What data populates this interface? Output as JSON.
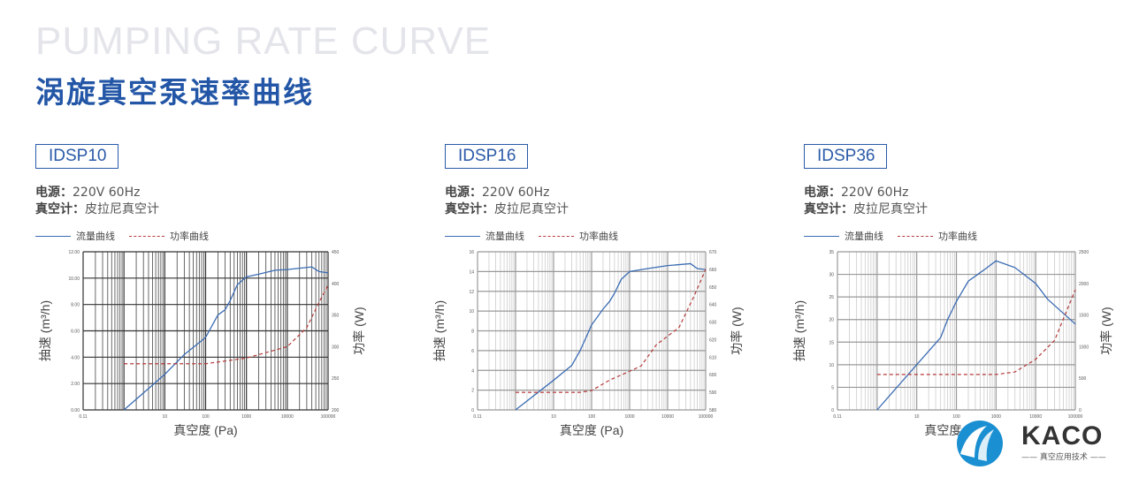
{
  "header": {
    "title_en": "PUMPING RATE CURVE",
    "title_cn": "涡旋真空泵速率曲线"
  },
  "brand": {
    "name": "KACO",
    "tagline": "—— 真空应用技术 ——"
  },
  "colors": {
    "accent": "#2356a6",
    "flow": "#3a6bb3",
    "power": "#b63a3a"
  },
  "chart_data": [
    {
      "type": "line",
      "model": "IDSP10",
      "spec_power_label": "电源：",
      "spec_power": "220V 60Hz",
      "spec_gauge_label": "真空计：",
      "spec_gauge": "皮拉尼真空计",
      "xlabel": "真空度 (Pa)",
      "ylabel": "抽速 (m³/h)",
      "y2label": "功率 (W)",
      "xscale": "log",
      "xlim": [
        0.1,
        100000
      ],
      "xticks": [
        "0.11",
        "10",
        "100",
        "1000",
        "10000",
        "100000"
      ],
      "ylim": [
        0,
        12
      ],
      "yticks": [
        "0.00",
        "2.00",
        "4.00",
        "6.00",
        "8.00",
        "10.00",
        "12.00"
      ],
      "y2lim": [
        200,
        450
      ],
      "y2ticks": [
        "200",
        "250",
        "300",
        "350",
        "400",
        "450"
      ],
      "grid": true,
      "legend": "top-left",
      "series": [
        {
          "name": "流量曲线",
          "axis": "left",
          "x": [
            1,
            10,
            30,
            100,
            200,
            300,
            400,
            600,
            1000,
            2000,
            5000,
            10000,
            20000,
            40000,
            60000,
            100000
          ],
          "y": [
            0,
            2.7,
            4.2,
            5.5,
            7.2,
            7.6,
            8.3,
            9.5,
            10.1,
            10.3,
            10.6,
            10.65,
            10.75,
            10.85,
            10.5,
            10.4
          ]
        },
        {
          "name": "功率曲线",
          "axis": "right",
          "x": [
            1,
            100,
            1000,
            10000,
            30000,
            60000,
            100000
          ],
          "y": [
            273,
            273,
            282,
            300,
            330,
            370,
            397
          ]
        }
      ]
    },
    {
      "type": "line",
      "model": "IDSP16",
      "spec_power_label": "电源：",
      "spec_power": "220V 60Hz",
      "spec_gauge_label": "真空计：",
      "spec_gauge": "皮拉尼真空计",
      "xlabel": "真空度 (Pa)",
      "ylabel": "抽速 (m³/h)",
      "y2label": "功率 (W)",
      "xscale": "log",
      "xlim": [
        0.1,
        100000
      ],
      "xticks": [
        "0.11",
        "10",
        "100",
        "1000",
        "10000",
        "100000"
      ],
      "ylim": [
        0,
        16
      ],
      "yticks": [
        "0",
        "2",
        "4",
        "6",
        "8",
        "10",
        "12",
        "14",
        "16"
      ],
      "y2lim": [
        580,
        670
      ],
      "y2ticks": [
        "580",
        "590",
        "600",
        "610",
        "620",
        "630",
        "640",
        "650",
        "660",
        "670"
      ],
      "grid": true,
      "legend": "top-left",
      "series": [
        {
          "name": "流量曲线",
          "axis": "left",
          "x": [
            1,
            10,
            30,
            50,
            100,
            200,
            300,
            400,
            600,
            1000,
            3000,
            10000,
            40000,
            60000,
            100000
          ],
          "y": [
            0,
            3,
            4.5,
            6,
            8.6,
            10.2,
            11,
            11.8,
            13.2,
            14,
            14.3,
            14.6,
            14.8,
            14.3,
            14.2
          ]
        },
        {
          "name": "功率曲线",
          "axis": "right",
          "x": [
            1,
            50,
            100,
            300,
            1000,
            2000,
            5000,
            20000,
            50000,
            100000
          ],
          "y": [
            590,
            590,
            591,
            597,
            602,
            605,
            617,
            627,
            645,
            660
          ]
        }
      ]
    },
    {
      "type": "line",
      "model": "IDSP36",
      "spec_power_label": "电源：",
      "spec_power": "220V 60Hz",
      "spec_gauge_label": "真空计：",
      "spec_gauge": "皮拉尼真空计",
      "xlabel": "真空度 (Pa)",
      "ylabel": "抽速 (m³/h)",
      "y2label": "功率 (W)",
      "xscale": "log",
      "xlim": [
        0.1,
        100000
      ],
      "xticks": [
        "0.11",
        "10",
        "100",
        "1000",
        "10000",
        "100000"
      ],
      "ylim": [
        0,
        35
      ],
      "yticks": [
        "0",
        "5",
        "10",
        "15",
        "20",
        "25",
        "30",
        "35"
      ],
      "y2lim": [
        0,
        2500
      ],
      "y2ticks": [
        "0",
        "500",
        "1000",
        "1500",
        "2000",
        "2500"
      ],
      "grid": true,
      "legend": "top-left",
      "series": [
        {
          "name": "流量曲线",
          "axis": "left",
          "x": [
            1,
            10,
            40,
            60,
            100,
            200,
            500,
            1000,
            3000,
            10000,
            20000,
            100000
          ],
          "y": [
            0,
            10,
            16,
            20,
            24,
            28.5,
            31,
            33,
            31.5,
            28,
            24.5,
            19
          ]
        },
        {
          "name": "功率曲线",
          "axis": "right",
          "x": [
            1,
            1000,
            3000,
            10000,
            30000,
            100000
          ],
          "y": [
            560,
            560,
            600,
            800,
            1100,
            1900
          ]
        }
      ]
    }
  ]
}
